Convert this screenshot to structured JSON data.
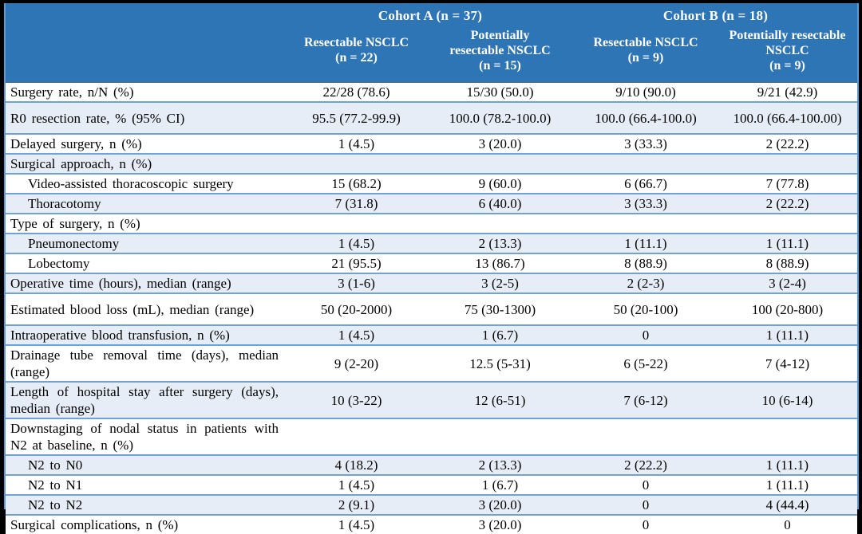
{
  "header": {
    "cohort_a": "Cohort A (n = 37)",
    "cohort_b": "Cohort B (n = 18)",
    "columns": [
      "Resectable NSCLC\n(n = 22)",
      "Potentially\nresectable NSCLC\n(n = 15)",
      "Resectable NSCLC\n(n = 9)",
      "Potentially resectable\nNSCLC\n(n = 9)"
    ]
  },
  "rows": [
    {
      "label": "Surgery rate, n/N (%)",
      "indent": false,
      "tall": false,
      "values": [
        "22/28 (78.6)",
        "15/30 (50.0)",
        "9/10 (90.0)",
        "9/21 (42.9)"
      ]
    },
    {
      "label": "R0 resection rate, % (95% CI)",
      "indent": false,
      "tall": true,
      "values": [
        "95.5 (77.2-99.9)",
        "100.0 (78.2-100.0)",
        "100.0 (66.4-100.0)",
        "100.0 (66.4-100.00)"
      ]
    },
    {
      "label": "Delayed surgery, n (%)",
      "indent": false,
      "tall": false,
      "values": [
        "1 (4.5)",
        "3 (20.0)",
        "3 (33.3)",
        "2 (22.2)"
      ]
    },
    {
      "label": "Surgical approach, n (%)",
      "indent": false,
      "tall": false,
      "values": [
        "",
        "",
        "",
        ""
      ]
    },
    {
      "label": "Video-assisted thoracoscopic surgery",
      "indent": true,
      "tall": false,
      "values": [
        "15 (68.2)",
        "9 (60.0)",
        "6 (66.7)",
        "7 (77.8)"
      ]
    },
    {
      "label": "Thoracotomy",
      "indent": true,
      "tall": false,
      "values": [
        "7 (31.8)",
        "6 (40.0)",
        "3 (33.3)",
        "2 (22.2)"
      ]
    },
    {
      "label": "Type of surgery, n (%)",
      "indent": false,
      "tall": false,
      "values": [
        "",
        "",
        "",
        ""
      ]
    },
    {
      "label": "Pneumonectomy",
      "indent": true,
      "tall": false,
      "values": [
        "1 (4.5)",
        "2 (13.3)",
        "1 (11.1)",
        "1 (11.1)"
      ]
    },
    {
      "label": "Lobectomy",
      "indent": true,
      "tall": false,
      "values": [
        "21 (95.5)",
        "13 (86.7)",
        "8 (88.9)",
        "8 (88.9)"
      ]
    },
    {
      "label": "Operative time (hours), median (range)",
      "indent": false,
      "tall": false,
      "values": [
        "3 (1-6)",
        "3 (2-5)",
        "2 (2-3)",
        "3 (2-4)"
      ]
    },
    {
      "label": "Estimated blood loss (mL), median (range)",
      "indent": false,
      "tall": true,
      "values": [
        "50 (20-2000)",
        "75 (30-1300)",
        "50 (20-100)",
        "100 (20-800)"
      ]
    },
    {
      "label": "Intraoperative blood transfusion, n (%)",
      "indent": false,
      "tall": false,
      "values": [
        "1 (4.5)",
        "1 (6.7)",
        "0",
        "1 (11.1)"
      ]
    },
    {
      "label": "Drainage tube removal time (days), median (range)",
      "indent": false,
      "tall": false,
      "values": [
        "9 (2-20)",
        "12.5 (5-31)",
        "6 (5-22)",
        "7 (4-12)"
      ]
    },
    {
      "label": "Length of hospital stay after surgery (days), median (range)",
      "indent": false,
      "tall": false,
      "values": [
        "10 (3-22)",
        "12 (6-51)",
        "7 (6-12)",
        "10 (6-14)"
      ]
    },
    {
      "label": "Downstaging of nodal status in patients with N2 at baseline, n (%)",
      "indent": false,
      "tall": false,
      "values": [
        "",
        "",
        "",
        ""
      ]
    },
    {
      "label": "N2 to N0",
      "indent": true,
      "tall": false,
      "values": [
        "4 (18.2)",
        "2 (13.3)",
        "2 (22.2)",
        "1 (11.1)"
      ]
    },
    {
      "label": "N2 to N1",
      "indent": true,
      "tall": false,
      "values": [
        "1 (4.5)",
        "1 (6.7)",
        "0",
        "1 (11.1)"
      ]
    },
    {
      "label": "N2 to N2",
      "indent": true,
      "tall": false,
      "values": [
        "2 (9.1)",
        "3 (20.0)",
        "0",
        "4 (44.4)"
      ]
    },
    {
      "label": "Surgical complications, n (%)",
      "indent": false,
      "tall": false,
      "values": [
        "1 (4.5)",
        "3 (20.0)",
        "0",
        "0"
      ]
    }
  ],
  "colors": {
    "header_bg": "#2E75B6",
    "header_text": "#FFFFFF",
    "stripe_bg": "#E7EDF7",
    "row_border": "#6FA3D8",
    "border_blue": "#5B9BD5",
    "border_strong": "#41719C",
    "frame": "#000000"
  }
}
